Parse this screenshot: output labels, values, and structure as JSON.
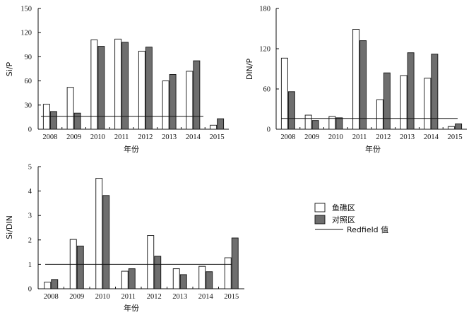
{
  "chart_data": [
    {
      "type": "bar",
      "categories": [
        "2008",
        "2009",
        "2010",
        "2011",
        "2012",
        "2013",
        "2014",
        "2015"
      ],
      "xlabel": "年份",
      "ylabel": "Si/P",
      "ylim": [
        0,
        150
      ],
      "yticks": [
        0,
        30,
        60,
        90,
        120,
        150
      ],
      "series": [
        {
          "name": "鱼礁区",
          "values": [
            31,
            52,
            111,
            112,
            97,
            60,
            72,
            5
          ]
        },
        {
          "name": "对照区",
          "values": [
            22,
            20,
            103,
            108,
            102,
            68,
            85,
            13
          ]
        }
      ],
      "reference_line": {
        "name": "Redfield 值",
        "value": 16
      }
    },
    {
      "type": "bar",
      "categories": [
        "2008",
        "2009",
        "2010",
        "2011",
        "2012",
        "2013",
        "2014",
        "2015"
      ],
      "xlabel": "年份",
      "ylabel": "DIN/P",
      "ylim": [
        0,
        180
      ],
      "yticks": [
        0,
        60,
        120,
        180
      ],
      "series": [
        {
          "name": "鱼礁区",
          "values": [
            106,
            21,
            19,
            149,
            44,
            80,
            76,
            4
          ]
        },
        {
          "name": "对照区",
          "values": [
            56,
            13,
            17,
            132,
            84,
            114,
            112,
            8
          ]
        }
      ],
      "reference_line": {
        "name": "Redfield 值",
        "value": 16
      }
    },
    {
      "type": "bar",
      "categories": [
        "2008",
        "2009",
        "2010",
        "2011",
        "2012",
        "2013",
        "2014",
        "2015"
      ],
      "xlabel": "年份",
      "ylabel": "Si/DIN",
      "ylim": [
        0,
        5
      ],
      "yticks": [
        0,
        1,
        2,
        3,
        4,
        5
      ],
      "series": [
        {
          "name": "鱼礁区",
          "values": [
            0.27,
            2.02,
            4.52,
            0.72,
            2.18,
            0.82,
            0.92,
            1.27
          ]
        },
        {
          "name": "对照区",
          "values": [
            0.38,
            1.75,
            3.82,
            0.82,
            1.33,
            0.58,
            0.7,
            2.08
          ]
        }
      ],
      "reference_line": {
        "name": "Redfield 值",
        "value": 1
      }
    }
  ],
  "legend": {
    "items": [
      {
        "label": "鱼礁区",
        "kind": "bar",
        "fill": "#ffffff"
      },
      {
        "label": "对照区",
        "kind": "bar",
        "fill": "#6e6e6e"
      },
      {
        "label": "Redfield 值",
        "kind": "line"
      }
    ]
  },
  "colors": {
    "series1_fill": "#ffffff",
    "series2_fill": "#6e6e6e",
    "stroke": "#111111"
  }
}
